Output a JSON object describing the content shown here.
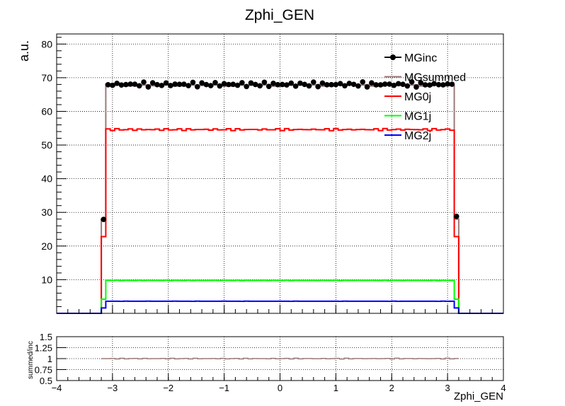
{
  "chart_data": [
    {
      "type": "line",
      "title": "Zphi_GEN",
      "xlabel": "",
      "ylabel": "a.u.",
      "xlim": [
        -4,
        4
      ],
      "ylim": [
        0,
        83
      ],
      "grid": true,
      "legend_position": "top-right",
      "x_ticks": [
        "−4",
        "−3",
        "−2",
        "−1",
        "0",
        "1",
        "2",
        "3",
        "4"
      ],
      "y_ticks": [
        "10",
        "20",
        "30",
        "40",
        "50",
        "60",
        "70",
        "80"
      ],
      "series": [
        {
          "name": "MGinc",
          "style": "points",
          "color": "#000000",
          "edge_points": [
            {
              "x": -3.16,
              "y": 27.9
            },
            {
              "x": 3.16,
              "y": 28.8
            }
          ],
          "plateau": 68.0
        },
        {
          "name": "MGsummed",
          "style": "step",
          "color": "#9c7a7a",
          "edges": [
            -3.2,
            -3.12,
            3.12,
            3.2
          ],
          "plateau": 67.8,
          "edge_value": 28.0
        },
        {
          "name": "MG0j",
          "style": "step",
          "color": "#ff0000",
          "edges": [
            -3.2,
            -3.12,
            3.12,
            3.2
          ],
          "plateau": 54.6,
          "edge_value": 22.8
        },
        {
          "name": "MG1j",
          "style": "step",
          "color": "#00ff00",
          "edges": [
            -3.2,
            -3.12,
            3.12,
            3.2
          ],
          "plateau": 9.8,
          "edge_value": 4.2
        },
        {
          "name": "MG2j",
          "style": "step",
          "color": "#0000ff",
          "edges": [
            -3.2,
            -3.12,
            3.12,
            3.2
          ],
          "plateau": 3.6,
          "edge_value": 1.6
        }
      ]
    },
    {
      "type": "line",
      "title": "",
      "xlabel": "Zphi_GEN",
      "ylabel": "summed/inc",
      "xlim": [
        -4,
        4
      ],
      "ylim": [
        0.5,
        1.5
      ],
      "grid": true,
      "x_ticks": [
        "−4",
        "−3",
        "−2",
        "−1",
        "0",
        "1",
        "2",
        "3",
        "4"
      ],
      "y_ticks": [
        "0.5",
        "0.75",
        "1",
        "1.25",
        "1.5"
      ],
      "series": [
        {
          "style": "step",
          "color": "#9c7a7a",
          "x_range": [
            -3.2,
            3.2
          ],
          "value": 1.0
        }
      ]
    }
  ]
}
